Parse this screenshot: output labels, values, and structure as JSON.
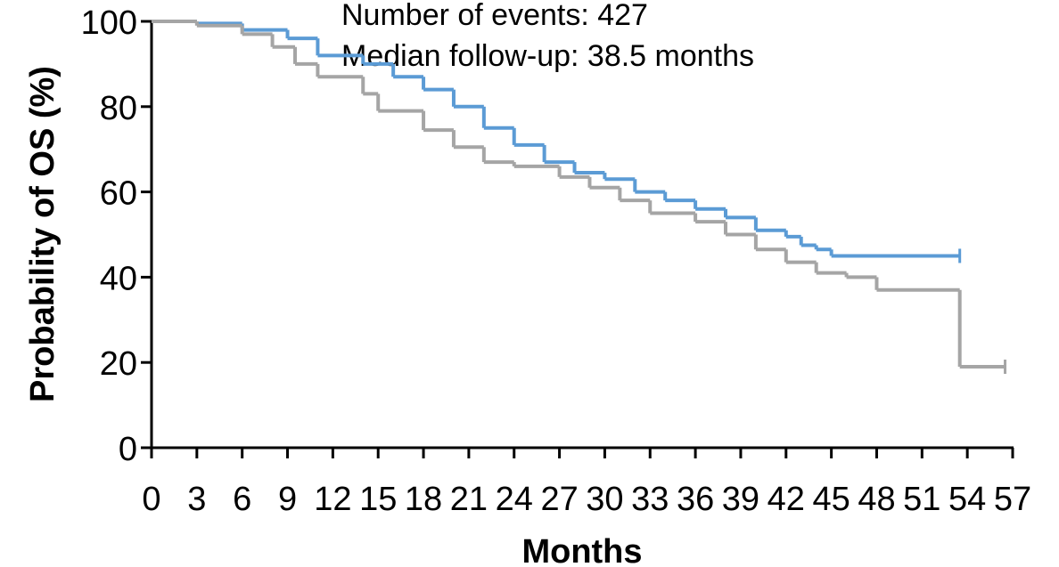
{
  "chart_data": {
    "type": "step",
    "annotations": [
      "Number of events: 427",
      "Median follow-up: 38.5 months"
    ],
    "ylabel": "Probability of OS (%)",
    "xlabel": "Months",
    "xlim": [
      0,
      57
    ],
    "ylim": [
      0,
      100
    ],
    "xticks": [
      0,
      3,
      6,
      9,
      12,
      15,
      18,
      21,
      24,
      27,
      30,
      33,
      36,
      39,
      42,
      45,
      48,
      51,
      54,
      57
    ],
    "yticks": [
      0,
      20,
      40,
      60,
      80,
      100
    ],
    "series": [
      {
        "color": "#5b9bd5",
        "x": [
          0,
          3,
          6,
          9,
          11,
          14,
          16,
          18,
          20,
          22,
          24,
          26,
          28,
          30,
          32,
          34,
          36,
          38,
          40,
          42,
          43,
          44,
          45,
          53.5
        ],
        "y": [
          100,
          99.5,
          98,
          96,
          92,
          90,
          87,
          84,
          80,
          75,
          71,
          67,
          64.5,
          63,
          60,
          58,
          56,
          54,
          51,
          49.5,
          47.5,
          46.5,
          45,
          45
        ]
      },
      {
        "color": "#a5a5a5",
        "x": [
          0,
          3,
          6,
          8,
          9.5,
          11,
          14,
          15,
          18,
          20,
          22,
          24,
          27,
          29,
          31,
          33,
          36,
          38,
          40,
          42,
          44,
          46,
          48,
          53.5,
          56.5
        ],
        "y": [
          100,
          99,
          97,
          94,
          90,
          87,
          83,
          79,
          74.5,
          70.5,
          67,
          66,
          63.5,
          61,
          58,
          55,
          53,
          50,
          46.5,
          43.5,
          41,
          40,
          37,
          19,
          19
        ]
      }
    ]
  }
}
